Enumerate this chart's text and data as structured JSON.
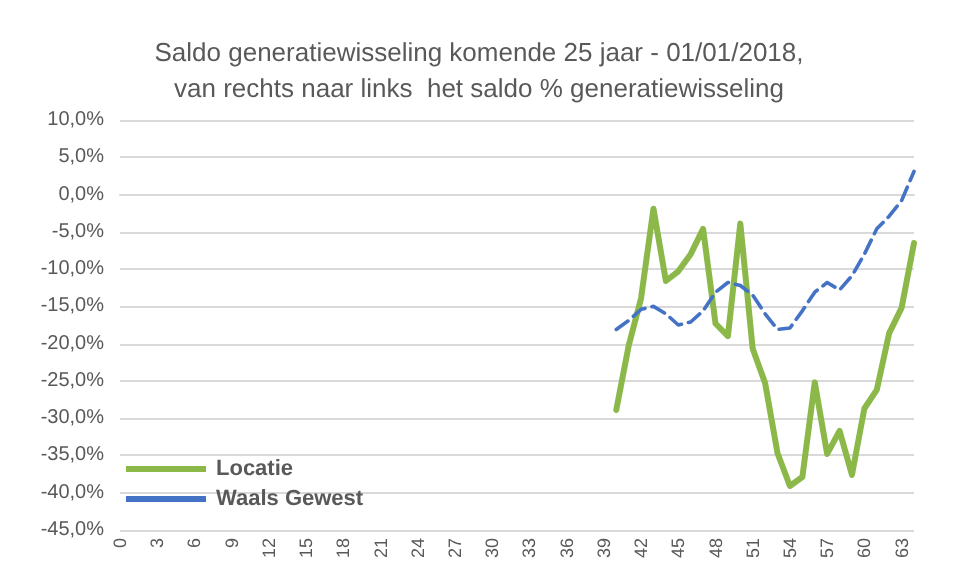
{
  "chart_data": {
    "type": "line",
    "title": "Saldo generatiewisseling komende 25 jaar - 01/01/2018,\nvan rechts naar links  het saldo % generatiewisseling",
    "categories": [
      "0",
      null,
      null,
      "3",
      null,
      null,
      "6",
      null,
      null,
      "9",
      null,
      null,
      "12",
      null,
      null,
      "15",
      null,
      null,
      "18",
      null,
      null,
      "21",
      null,
      null,
      "24",
      null,
      null,
      "27",
      null,
      null,
      "30",
      null,
      null,
      "33",
      null,
      null,
      "36",
      null,
      null,
      "39",
      null,
      null,
      "42",
      null,
      null,
      "45",
      null,
      null,
      "48",
      null,
      null,
      "51",
      null,
      null,
      "54",
      null,
      null,
      "57",
      null,
      null,
      "60",
      null,
      null,
      "63",
      null
    ],
    "series": [
      {
        "name": "Locatie",
        "color": "#8cb84a",
        "line_style": "solid",
        "values": [
          null,
          null,
          null,
          null,
          null,
          null,
          null,
          null,
          null,
          null,
          null,
          null,
          null,
          null,
          null,
          null,
          null,
          null,
          null,
          null,
          null,
          null,
          null,
          null,
          null,
          null,
          null,
          null,
          null,
          null,
          null,
          null,
          null,
          null,
          null,
          null,
          null,
          null,
          null,
          null,
          -28.9,
          -20.3,
          -13.9,
          -1.9,
          -11.6,
          -10.3,
          -8.0,
          -4.6,
          -17.3,
          -19.0,
          -3.9,
          -20.7,
          -25.3,
          -34.7,
          -39.1,
          -37.9,
          -25.2,
          -34.8,
          -31.7,
          -37.6,
          -28.7,
          -26.2,
          -18.6,
          -15.2,
          -6.5
        ]
      },
      {
        "name": "Waals Gewest",
        "color": "#4472c4",
        "line_style": "dashed",
        "values": [
          null,
          null,
          null,
          null,
          null,
          null,
          null,
          null,
          null,
          null,
          null,
          null,
          null,
          null,
          null,
          null,
          null,
          null,
          null,
          null,
          null,
          null,
          null,
          null,
          null,
          null,
          null,
          null,
          null,
          null,
          null,
          null,
          null,
          null,
          null,
          null,
          null,
          null,
          null,
          null,
          -18.1,
          -16.9,
          -15.4,
          -15.0,
          -16.0,
          -17.5,
          -17.1,
          -15.6,
          -13.1,
          -11.8,
          -12.2,
          -13.5,
          -16.0,
          -18.1,
          -17.9,
          -15.6,
          -13.1,
          -11.8,
          -12.8,
          -10.9,
          -8.0,
          -4.6,
          -2.9,
          -0.8,
          3.1
        ]
      }
    ],
    "ylim": [
      -45,
      10
    ],
    "yticks": [
      {
        "value": -45,
        "label": "-45,0%"
      },
      {
        "value": -40,
        "label": "-40,0%"
      },
      {
        "value": -35,
        "label": "-35,0%"
      },
      {
        "value": -30,
        "label": "-30,0%"
      },
      {
        "value": -25,
        "label": "-25,0%"
      },
      {
        "value": -20,
        "label": "-20,0%"
      },
      {
        "value": -15,
        "label": "-15,0%"
      },
      {
        "value": -10,
        "label": "-10,0%"
      },
      {
        "value": -5,
        "label": "-5,0%"
      },
      {
        "value": 0,
        "label": "0,0%"
      },
      {
        "value": 5,
        "label": "5,0%"
      },
      {
        "value": 10,
        "label": "10,0%"
      }
    ],
    "grid": "y",
    "legend": "bottom left",
    "marker": "none"
  }
}
